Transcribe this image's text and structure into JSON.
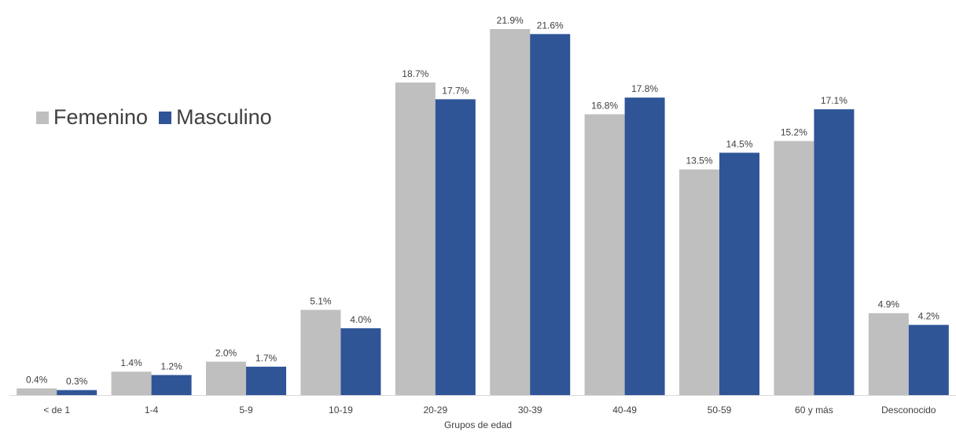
{
  "chart_data": {
    "type": "bar",
    "categories": [
      "< de 1",
      "1-4",
      "5-9",
      "10-19",
      "20-29",
      "30-39",
      "40-49",
      "50-59",
      "60 y más",
      "Desconocido"
    ],
    "series": [
      {
        "name": "Femenino",
        "color": "#bfbfbf",
        "values": [
          0.4,
          1.4,
          2.0,
          5.1,
          18.7,
          21.9,
          16.8,
          13.5,
          15.2,
          4.9
        ],
        "labels": [
          "0.4%",
          "1.4%",
          "2.0%",
          "5.1%",
          "18.7%",
          "21.9%",
          "16.8%",
          "13.5%",
          "15.2%",
          "4.9%"
        ]
      },
      {
        "name": "Masculino",
        "color": "#2f5597",
        "values": [
          0.3,
          1.2,
          1.7,
          4.0,
          17.7,
          21.6,
          17.8,
          14.5,
          17.1,
          4.2
        ],
        "labels": [
          "0.3%",
          "1.2%",
          "1.7%",
          "4.0%",
          "17.7%",
          "21.6%",
          "17.8%",
          "14.5%",
          "17.1%",
          "4.2%"
        ]
      }
    ],
    "xlabel": "Grupos de edad",
    "ylabel": "",
    "ylim": [
      0,
      21.9
    ],
    "grid": false,
    "legend": "top-left"
  }
}
